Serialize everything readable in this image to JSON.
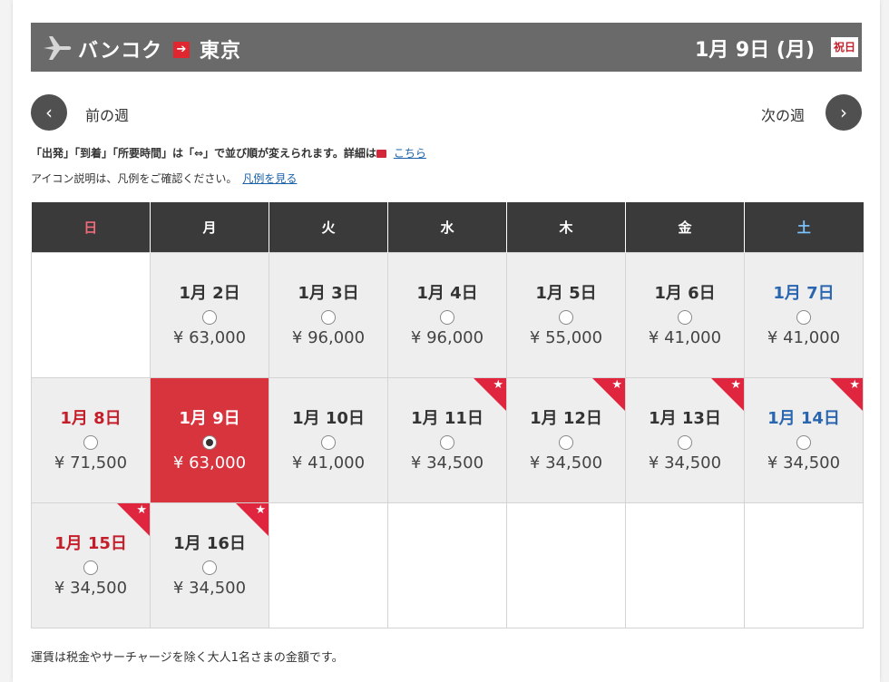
{
  "header": {
    "origin": "バンコク",
    "arrow": "➔",
    "destination": "東京",
    "date": "1月 9日 (月)",
    "holiday_badge": "祝日"
  },
  "nav": {
    "prev_label": "前の週",
    "next_label": "次の週",
    "prev_glyph": "‹",
    "next_glyph": "›"
  },
  "info": {
    "sort_text": "「出発」「到着」「所要時間」は「⇔」で並び順が変えられます。詳細は",
    "sort_link": "こちら",
    "legend_text": "アイコン説明は、凡例をご確認ください。",
    "legend_link": "凡例を見る"
  },
  "icons": {
    "plane": "plane-icon",
    "route_arrow": "arrow-right-icon",
    "external": "external-window-icon",
    "star": "star-icon"
  },
  "colors": {
    "header_bg": "#6a6a6a",
    "selected_bg": "#d8343e",
    "holiday_red": "#c41e2a",
    "saturday_blue": "#2a66b0",
    "star_red": "#e0263f"
  },
  "star_glyph": "★",
  "weekdays": [
    "日",
    "月",
    "火",
    "水",
    "木",
    "金",
    "土"
  ],
  "weeks": [
    [
      null,
      {
        "date": "1月 2日",
        "price": "¥ 63,000",
        "type": "normal",
        "star": false,
        "selected": false
      },
      {
        "date": "1月 3日",
        "price": "¥ 96,000",
        "type": "normal",
        "star": false,
        "selected": false
      },
      {
        "date": "1月 4日",
        "price": "¥ 96,000",
        "type": "normal",
        "star": false,
        "selected": false
      },
      {
        "date": "1月 5日",
        "price": "¥ 55,000",
        "type": "normal",
        "star": false,
        "selected": false
      },
      {
        "date": "1月 6日",
        "price": "¥ 41,000",
        "type": "normal",
        "star": false,
        "selected": false
      },
      {
        "date": "1月 7日",
        "price": "¥ 41,000",
        "type": "sat",
        "star": false,
        "selected": false
      }
    ],
    [
      {
        "date": "1月 8日",
        "price": "¥ 71,500",
        "type": "sun",
        "star": false,
        "selected": false
      },
      {
        "date": "1月 9日",
        "price": "¥ 63,000",
        "type": "hol",
        "star": false,
        "selected": true
      },
      {
        "date": "1月 10日",
        "price": "¥ 41,000",
        "type": "normal",
        "star": false,
        "selected": false
      },
      {
        "date": "1月 11日",
        "price": "¥ 34,500",
        "type": "normal",
        "star": true,
        "selected": false
      },
      {
        "date": "1月 12日",
        "price": "¥ 34,500",
        "type": "normal",
        "star": true,
        "selected": false
      },
      {
        "date": "1月 13日",
        "price": "¥ 34,500",
        "type": "normal",
        "star": true,
        "selected": false
      },
      {
        "date": "1月 14日",
        "price": "¥ 34,500",
        "type": "sat",
        "star": true,
        "selected": false
      }
    ],
    [
      {
        "date": "1月 15日",
        "price": "¥ 34,500",
        "type": "sun",
        "star": true,
        "selected": false
      },
      {
        "date": "1月 16日",
        "price": "¥ 34,500",
        "type": "normal",
        "star": true,
        "selected": false
      },
      null,
      null,
      null,
      null,
      null
    ]
  ],
  "footnote": "運賃は税金やサーチャージを除く大人1名さまの金額です。"
}
